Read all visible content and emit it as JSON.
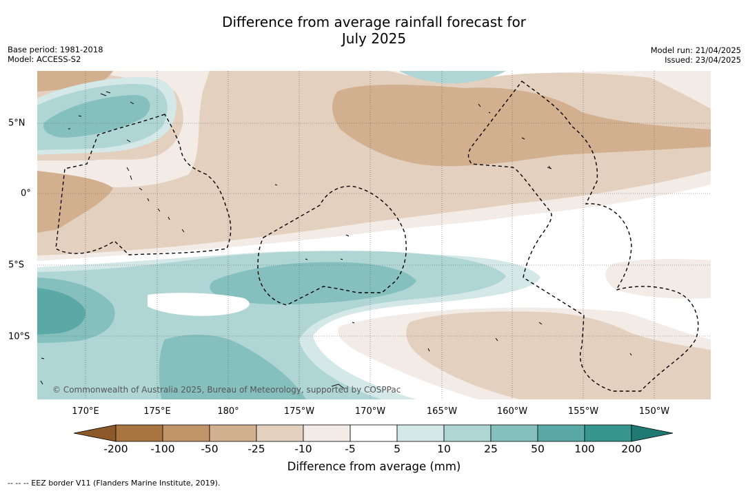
{
  "title_line1": "Difference from average rainfall forecast for",
  "title_line2": "July 2025",
  "meta_left": {
    "base_period": "Base period: 1981-2018",
    "model": "Model: ACCESS-S2"
  },
  "meta_right": {
    "model_run": "Model run: 21/04/2025",
    "issued": "Issued: 23/04/2025"
  },
  "map": {
    "copyright": "© Commonwealth of Australia 2025, Bureau of Meteorology, supported by COSPPac",
    "lon_labels": [
      "170°E",
      "175°E",
      "180°",
      "175°W",
      "170°W",
      "165°W",
      "160°W",
      "155°W",
      "150°W"
    ],
    "lat_labels": [
      "5°N",
      "0°",
      "5°S",
      "10°S"
    ],
    "icons": {
      "eez_border": "dashed-line",
      "coastline": "black-line"
    }
  },
  "colorbar": {
    "ticks": [
      "-200",
      "-100",
      "-50",
      "-25",
      "-10",
      "-5",
      "5",
      "10",
      "25",
      "50",
      "100",
      "200"
    ],
    "colors": [
      "#8c5a2a",
      "#a97540",
      "#c2946a",
      "#d2b08f",
      "#e3d0be",
      "#f3ebe5",
      "#ffffff",
      "#d4e8e7",
      "#afd6d5",
      "#86c0be",
      "#5aa9a7",
      "#36958f",
      "#1f7a74"
    ],
    "title": "Difference from average (mm)"
  },
  "footnote": "--  --  -- EEZ border V11 (Flanders Marine Institute, 2019)."
}
